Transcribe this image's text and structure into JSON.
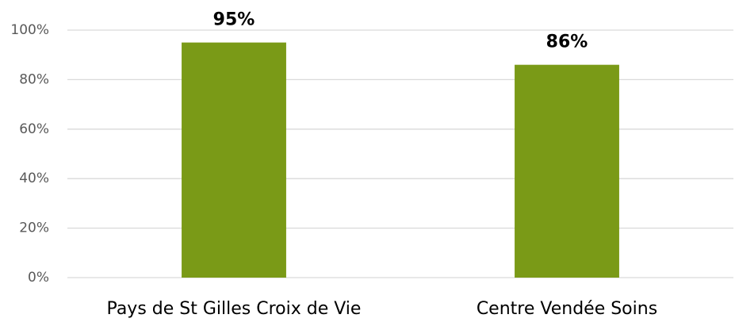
{
  "chart_data": {
    "type": "bar",
    "categories": [
      "Pays de St Gilles Croix de Vie",
      "Centre Vendée Soins"
    ],
    "values": [
      95,
      86
    ],
    "value_labels": [
      "95%",
      "86%"
    ],
    "color": "#7a9a17",
    "ylim": [
      0,
      100
    ],
    "yticks": [
      {
        "value": 0,
        "label": "0%"
      },
      {
        "value": 20,
        "label": "20%"
      },
      {
        "value": 40,
        "label": "40%"
      },
      {
        "value": 60,
        "label": "60%"
      },
      {
        "value": 80,
        "label": "80%"
      },
      {
        "value": 100,
        "label": "100%"
      }
    ],
    "grid": true
  }
}
